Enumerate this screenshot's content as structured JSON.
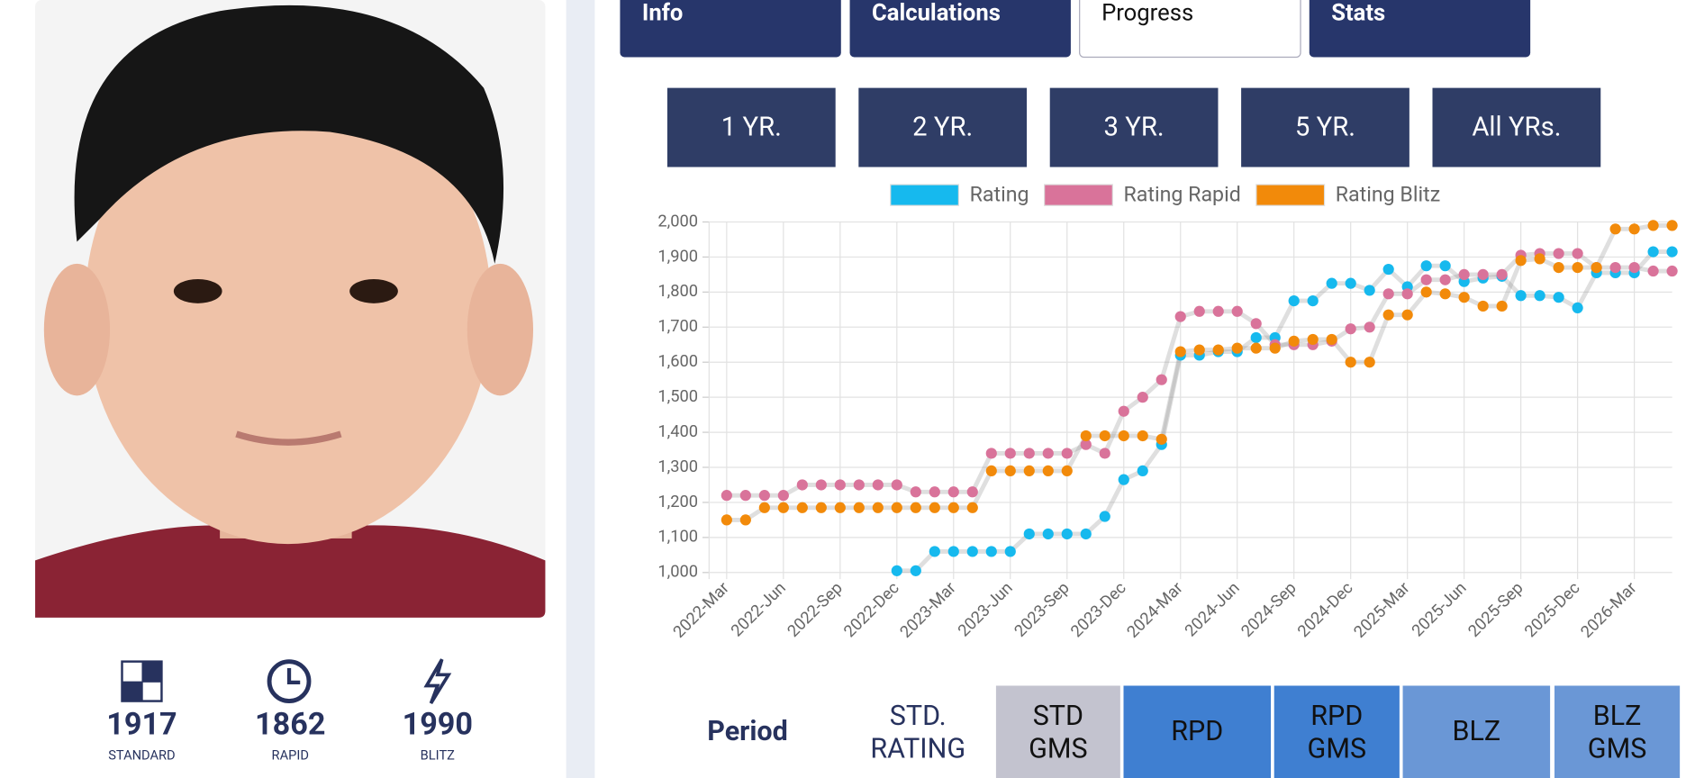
{
  "profile": {
    "ratings": [
      {
        "value": 1917,
        "label": "STANDARD"
      },
      {
        "value": 1862,
        "label": "RAPID"
      },
      {
        "value": 1990,
        "label": "BLITZ"
      }
    ]
  },
  "tabs": [
    "Info",
    "Calculations",
    "Progress",
    "Stats"
  ],
  "periods": [
    "1 YR.",
    "2 YR.",
    "3 YR.",
    "5 YR.",
    "All YRs."
  ],
  "chart_data": {
    "type": "line",
    "categories": [
      "2022-Mar",
      null,
      null,
      "2022-Jun",
      null,
      null,
      "2022-Sep",
      null,
      null,
      "2022-Dec",
      null,
      null,
      "2023-Mar",
      null,
      null,
      "2023-Jun",
      null,
      null,
      "2023-Sep",
      null,
      null,
      "2023-Dec",
      null,
      null,
      "2024-Mar",
      null,
      null,
      "2024-Jun",
      null,
      null,
      "2024-Sep",
      null,
      null,
      "2024-Dec",
      null,
      null,
      "2025-Mar",
      null,
      null,
      "2025-Jun",
      null,
      null,
      "2025-Sep",
      null,
      null,
      "2025-Dec",
      null,
      null,
      "2026-Mar",
      null,
      null
    ],
    "series": [
      {
        "name": "Rating",
        "color": "#16b9ee",
        "values": [
          null,
          null,
          null,
          null,
          null,
          null,
          null,
          null,
          null,
          1005,
          1005,
          1060,
          1060,
          1060,
          1060,
          1060,
          1110,
          1110,
          1110,
          1110,
          1160,
          1265,
          1290,
          1365,
          1620,
          1620,
          1630,
          1630,
          1670,
          1670,
          1775,
          1775,
          1825,
          1825,
          1805,
          1865,
          1815,
          1875,
          1875,
          1830,
          1840,
          1845,
          1790,
          1790,
          1785,
          1755,
          1855,
          1855,
          1855,
          1915,
          1915
        ]
      },
      {
        "name": "Rating Rapid",
        "color": "#d9739a",
        "values": [
          1220,
          1220,
          1220,
          1220,
          1250,
          1250,
          1250,
          1250,
          1250,
          1250,
          1230,
          1230,
          1230,
          1230,
          1340,
          1340,
          1340,
          1340,
          1340,
          1365,
          1340,
          1460,
          1500,
          1550,
          1730,
          1745,
          1745,
          1745,
          1710,
          1650,
          1650,
          1650,
          1660,
          1695,
          1700,
          1795,
          1795,
          1835,
          1835,
          1850,
          1850,
          1850,
          1905,
          1910,
          1910,
          1910,
          1870,
          1870,
          1870,
          1860,
          1860
        ]
      },
      {
        "name": "Rating Blitz",
        "color": "#f28a0a",
        "values": [
          1150,
          1150,
          1185,
          1185,
          1185,
          1185,
          1185,
          1185,
          1185,
          1185,
          1185,
          1185,
          1185,
          1185,
          1290,
          1290,
          1290,
          1290,
          1290,
          1390,
          1390,
          1390,
          1390,
          1380,
          1630,
          1635,
          1635,
          1640,
          1640,
          1640,
          1660,
          1665,
          1665,
          1600,
          1600,
          1735,
          1735,
          1800,
          1795,
          1785,
          1760,
          1760,
          1890,
          1895,
          1870,
          1870,
          1870,
          1980,
          1980,
          1990,
          1990
        ]
      }
    ],
    "ylim": [
      1000,
      2000
    ],
    "yticks": [
      {
        "value": 1000,
        "label": "1,000"
      },
      {
        "value": 1100,
        "label": "1,100"
      },
      {
        "value": 1200,
        "label": "1,200"
      },
      {
        "value": 1300,
        "label": "1,300"
      },
      {
        "value": 1400,
        "label": "1,400"
      },
      {
        "value": 1500,
        "label": "1,500"
      },
      {
        "value": 1600,
        "label": "1,600"
      },
      {
        "value": 1700,
        "label": "1,700"
      },
      {
        "value": 1800,
        "label": "1,800"
      },
      {
        "value": 1900,
        "label": "1,900"
      },
      {
        "value": 2000,
        "label": "2,000"
      }
    ],
    "grid": true,
    "legend": "top"
  },
  "table_header": [
    "Period",
    "STD. RATING",
    "STD GMS",
    "RPD",
    "RPD GMS",
    "BLZ",
    "BLZ GMS"
  ]
}
